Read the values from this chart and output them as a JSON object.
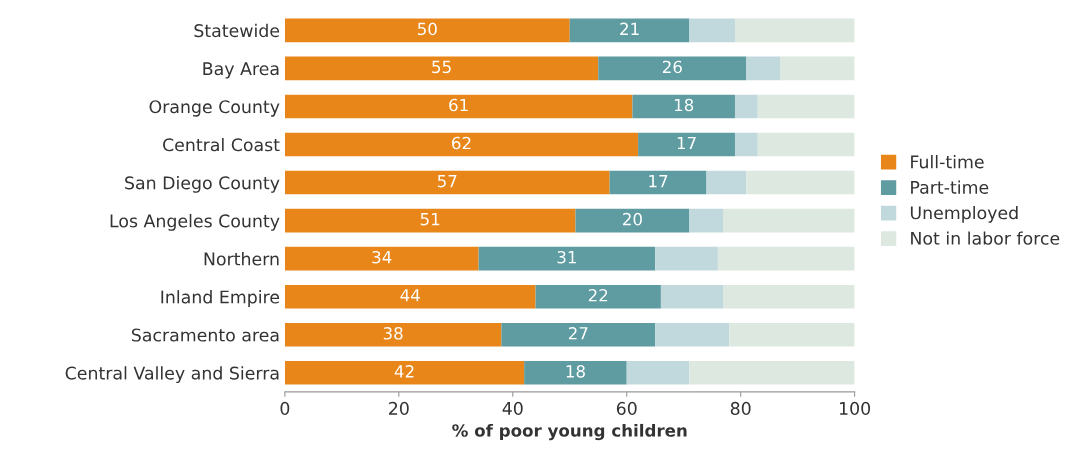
{
  "chart_data": {
    "type": "bar",
    "orientation": "horizontal",
    "stacked": true,
    "categories": [
      "Statewide",
      "Bay Area",
      "Orange County",
      "Central Coast",
      "San Diego County",
      "Los Angeles County",
      "Northern",
      "Inland Empire",
      "Sacramento area",
      "Central Valley and Sierra"
    ],
    "series": [
      {
        "name": "Full-time",
        "color": "#e8861a",
        "values": [
          50,
          55,
          61,
          62,
          57,
          51,
          34,
          44,
          38,
          42
        ],
        "value_labels": [
          "50",
          "55",
          "61",
          "62",
          "57",
          "51",
          "34",
          "44",
          "38",
          "42"
        ]
      },
      {
        "name": "Part-time",
        "color": "#5f9ca1",
        "values": [
          21,
          26,
          18,
          17,
          17,
          20,
          31,
          22,
          27,
          18
        ],
        "value_labels": [
          "21",
          "26",
          "18",
          "17",
          "17",
          "20",
          "31",
          "22",
          "27",
          "18"
        ]
      },
      {
        "name": "Unemployed",
        "color": "#c1d9dd",
        "values": [
          8,
          6,
          4,
          4,
          7,
          6,
          11,
          11,
          13,
          11
        ]
      },
      {
        "name": "Not in labor force",
        "color": "#dde8e0",
        "values": [
          21,
          13,
          17,
          17,
          19,
          23,
          24,
          23,
          22,
          29
        ]
      }
    ],
    "xlabel": "% of poor young children",
    "xlim": [
      0,
      100
    ],
    "xticks": [
      0,
      20,
      40,
      60,
      80,
      100
    ],
    "grid": false,
    "legend": "right"
  }
}
